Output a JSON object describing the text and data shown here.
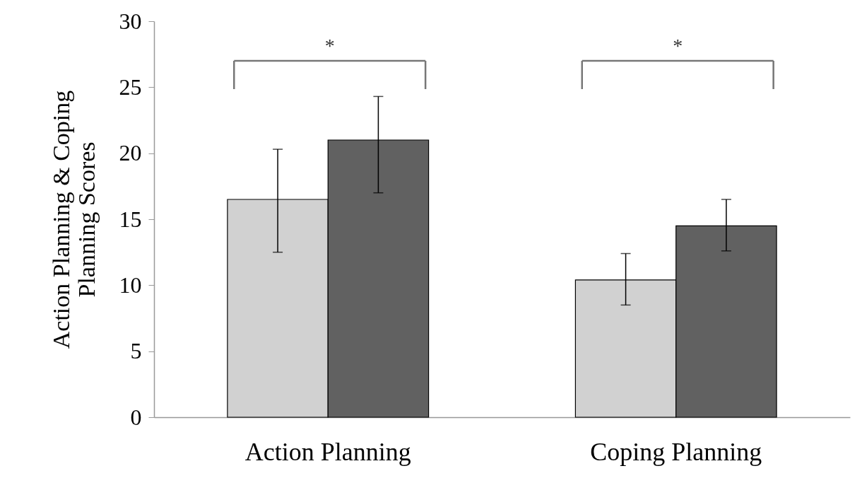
{
  "chart_data": {
    "type": "bar",
    "ylabel": "Action Planning & Coping Planning Scores",
    "categories": [
      "Action Planning",
      "Coping Planning"
    ],
    "series": [
      {
        "color": "#d1d1d1",
        "values": [
          16.5,
          10.4
        ],
        "errors": [
          [
            12.5,
            20.3
          ],
          [
            8.5,
            12.4
          ]
        ]
      },
      {
        "color": "#616161",
        "values": [
          21.0,
          14.5
        ],
        "errors": [
          [
            17.0,
            24.3
          ],
          [
            12.6,
            16.5
          ]
        ]
      }
    ],
    "ylim": [
      0,
      30
    ],
    "yticks": [
      0,
      5,
      10,
      15,
      20,
      25,
      30
    ],
    "grid": false,
    "legend": false,
    "annotations": [
      "*",
      "*"
    ]
  }
}
